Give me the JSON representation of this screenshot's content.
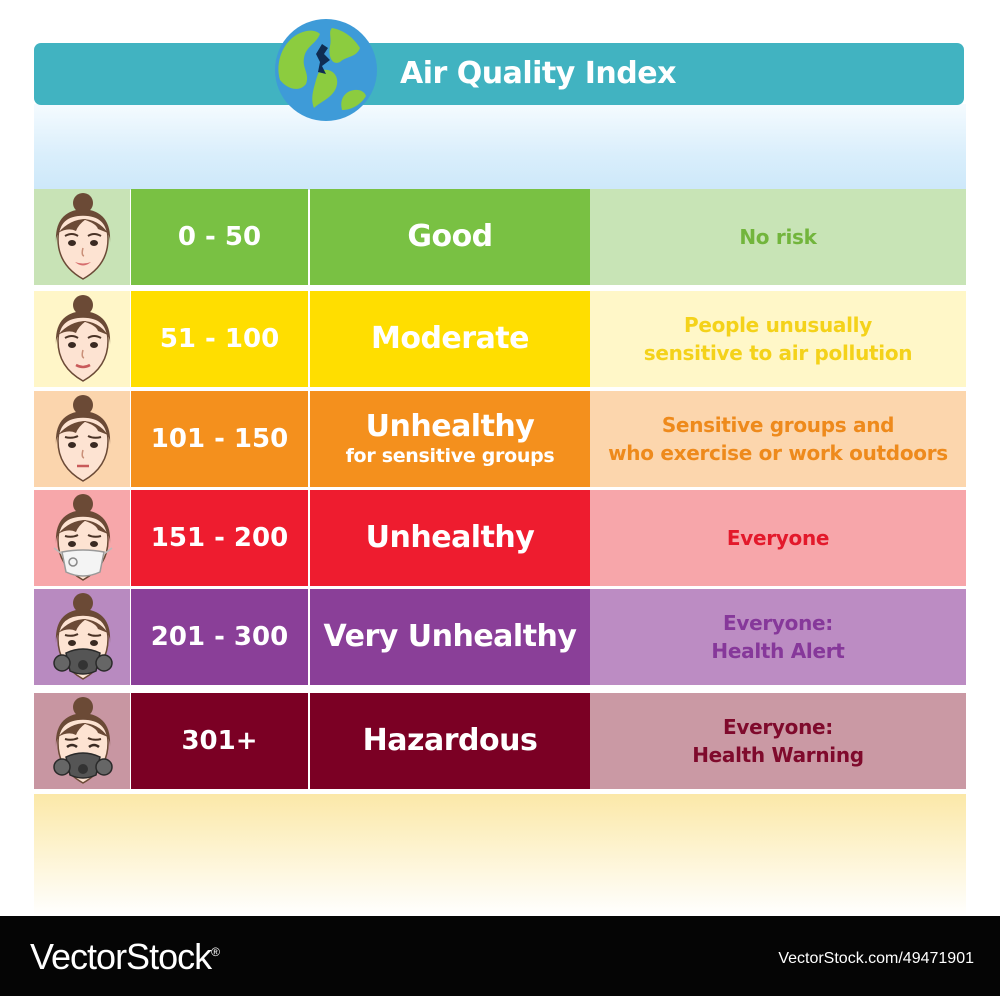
{
  "header": {
    "title": "Air Quality Index",
    "bar_color": "#41b3c1"
  },
  "levels": [
    {
      "range": "0 - 50",
      "title": "Good",
      "subtitle": "",
      "who": "No risk",
      "color": "#79c143",
      "face_bg": "#c8e3b6",
      "who_bg": "#c8e4b6",
      "who_color": "#72b53c",
      "face": "happy"
    },
    {
      "range": "51 - 100",
      "title": "Moderate",
      "subtitle": "",
      "who": "People unusually\nsensitive to air pollution",
      "color": "#ffde00",
      "face_bg": "#fff6c8",
      "who_bg": "#fff7c8",
      "who_color": "#f4d21a",
      "face": "smile"
    },
    {
      "range": "101 - 150",
      "title": "Unhealthy",
      "subtitle": "for sensitive groups",
      "who": "Sensitive groups and\nwho exercise or work outdoors",
      "color": "#f4901d",
      "face_bg": "#fbd5ad",
      "who_bg": "#fcd6ad",
      "who_color": "#ee8a1c",
      "face": "neutral"
    },
    {
      "range": "151 - 200",
      "title": "Unhealthy",
      "subtitle": "",
      "who": "Everyone",
      "color": "#ee1c2f",
      "face_bg": "#f7a7aa",
      "who_bg": "#f7a6aa",
      "who_color": "#e3192b",
      "face": "mask"
    },
    {
      "range": "201 - 300",
      "title": "Very Unhealthy",
      "subtitle": "",
      "who": "Everyone:\nHealth Alert",
      "color": "#8a3f98",
      "face_bg": "#b88ac0",
      "who_bg": "#bc8cc3",
      "who_color": "#86389a",
      "face": "respirator"
    },
    {
      "range": "301+",
      "title": "Hazardous",
      "subtitle": "",
      "who": "Everyone:\nHealth Warning",
      "color": "#7b0024",
      "face_bg": "#c896a2",
      "who_bg": "#ca99a4",
      "who_color": "#7f0a2c",
      "face": "respirator-sick"
    }
  ],
  "footer": {
    "brand": "VectorStock",
    "trademark": "®",
    "url": "VectorStock.com/49471901"
  }
}
